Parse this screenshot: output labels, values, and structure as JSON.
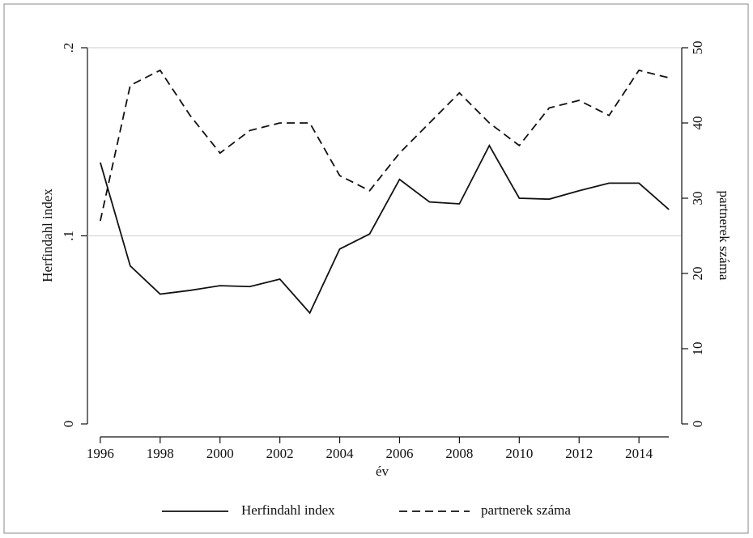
{
  "chart_data": {
    "type": "line",
    "x_label": "év",
    "y_label": "Herfindahl index",
    "y2_label": "partnerek száma",
    "x": [
      1996,
      1997,
      1998,
      1999,
      2000,
      2001,
      2002,
      2003,
      2004,
      2005,
      2006,
      2007,
      2008,
      2009,
      2010,
      2011,
      2012,
      2013,
      2014,
      2015
    ],
    "series": [
      {
        "name": "Herfindahl index",
        "color": "#111111",
        "dash": "solid",
        "values": [
          0.139,
          0.084,
          0.069,
          0.071,
          0.0735,
          0.073,
          0.077,
          0.059,
          0.093,
          0.101,
          0.13,
          0.118,
          0.117,
          0.148,
          0.12,
          0.1195,
          0.124,
          0.128,
          0.128,
          0.114
        ]
      },
      {
        "name": "partnerek száma",
        "color": "#111111",
        "dash": "dashed",
        "axis": "y2",
        "values": [
          27,
          45,
          47,
          41,
          36,
          39,
          40,
          40,
          33,
          31,
          36,
          40,
          44,
          40,
          37,
          42,
          43,
          41,
          47,
          46
        ]
      }
    ],
    "xlim": [
      1995.57,
      2015.43
    ],
    "xticks": [
      1996,
      1998,
      2000,
      2002,
      2004,
      2006,
      2008,
      2010,
      2012,
      2014
    ],
    "ylim": [
      0,
      0.2
    ],
    "yticks": [
      0,
      {
        "value": 0.1,
        "label": ".1"
      },
      {
        "value": 0.2,
        "label": ".2"
      }
    ],
    "y2lim": [
      0,
      50
    ],
    "y2ticks": [
      0,
      10,
      20,
      30,
      40,
      50
    ],
    "grid": true,
    "legend": "bottom"
  }
}
